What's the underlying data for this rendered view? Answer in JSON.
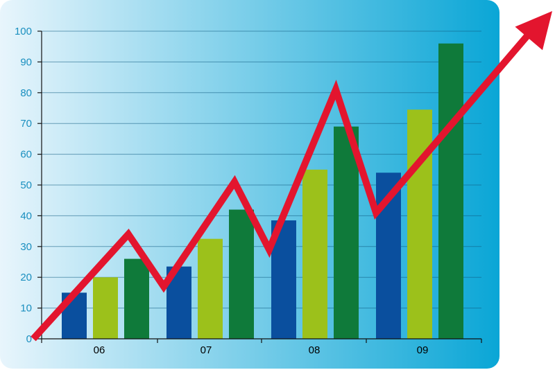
{
  "chart_data": {
    "type": "bar",
    "categories": [
      "06",
      "07",
      "08",
      "09"
    ],
    "series": [
      {
        "values": [
          15,
          23.5,
          38.5,
          54
        ]
      },
      {
        "values": [
          20,
          32.5,
          55,
          74.5
        ]
      },
      {
        "values": [
          26,
          42,
          69,
          96
        ]
      }
    ],
    "trend_line": {
      "values": [
        0,
        34,
        17,
        51,
        29,
        81,
        41,
        100
      ]
    },
    "ylim": [
      0,
      100
    ],
    "yticks": [
      0,
      10,
      20,
      30,
      40,
      50,
      60,
      70,
      80,
      90,
      100
    ],
    "ytick_labels": [
      "0",
      "10",
      "20",
      "30",
      "40",
      "50",
      "60",
      "70",
      "80",
      "90",
      "100"
    ],
    "grid": true,
    "title": "",
    "xlabel": "",
    "ylabel": ""
  },
  "colors": {
    "series": [
      "#0a4f9e",
      "#9cc11b",
      "#0f7a3a"
    ],
    "trend": "#e3152e",
    "tick_text_y": "#1a8fbf",
    "tick_text_x": "#000000",
    "panel_left": "#e8f5fc",
    "panel_right": "#0aa6d6",
    "gridline": "#0e5a80"
  }
}
